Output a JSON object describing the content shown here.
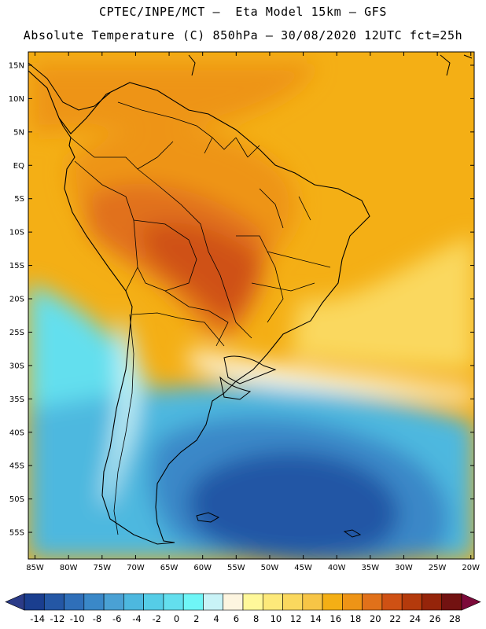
{
  "title": {
    "line1": "CPTEC/INPE/MCT –  Eta Model 15km – GFS",
    "line2": "Absolute Temperature (C) 850hPa – 30/08/2020 12UTC fct=25h"
  },
  "map": {
    "lon_range": [
      -86,
      -19.5
    ],
    "lat_range": [
      -59,
      17
    ],
    "lat_labels": [
      "15N",
      "10N",
      "5N",
      "EQ",
      "5S",
      "10S",
      "15S",
      "20S",
      "25S",
      "30S",
      "35S",
      "40S",
      "45S",
      "50S",
      "55S"
    ],
    "lat_values": [
      15,
      10,
      5,
      0,
      -5,
      -10,
      -15,
      -20,
      -25,
      -30,
      -35,
      -40,
      -45,
      -50,
      -55
    ],
    "lon_labels": [
      "85W",
      "80W",
      "75W",
      "70W",
      "65W",
      "60W",
      "55W",
      "50W",
      "45W",
      "40W",
      "35W",
      "30W",
      "25W",
      "20W"
    ],
    "lon_values": [
      -85,
      -80,
      -75,
      -70,
      -65,
      -60,
      -55,
      -50,
      -45,
      -40,
      -35,
      -30,
      -25,
      -20
    ],
    "regions": [
      {
        "name": "north-tropical-band",
        "temp": 20
      },
      {
        "name": "amazon-warm-core",
        "temp": 22
      },
      {
        "name": "central-brazil-hot-core",
        "temp": 24
      },
      {
        "name": "atlantic-subtropical-band",
        "temp": 16
      },
      {
        "name": "southern-cold-core",
        "temp": -10
      },
      {
        "name": "patagonia-cold-region",
        "temp": -6
      },
      {
        "name": "chile-pacific-cool-zone",
        "temp": 2
      }
    ]
  },
  "colorbar": {
    "labels": [
      "-14",
      "-12",
      "-10",
      "-8",
      "-6",
      "-4",
      "-2",
      "0",
      "2",
      "4",
      "6",
      "8",
      "10",
      "12",
      "14",
      "16",
      "18",
      "20",
      "22",
      "24",
      "26",
      "28"
    ],
    "colors": [
      "#1a3e8f",
      "#2457a5",
      "#2f6fb9",
      "#3a88c8",
      "#4aa1d4",
      "#4db8df",
      "#55cde7",
      "#63dfee",
      "#6ff6f7",
      "#c9f3f7",
      "#fdf5e0",
      "#fff89a",
      "#fde97a",
      "#fad85e",
      "#f7c546",
      "#f4af15",
      "#ee9416",
      "#e1711a",
      "#cf5114",
      "#b43a0c",
      "#95240a",
      "#721211"
    ],
    "left_arrow_color": "#2b3b88",
    "right_arrow_color": "#7c0a3a"
  }
}
